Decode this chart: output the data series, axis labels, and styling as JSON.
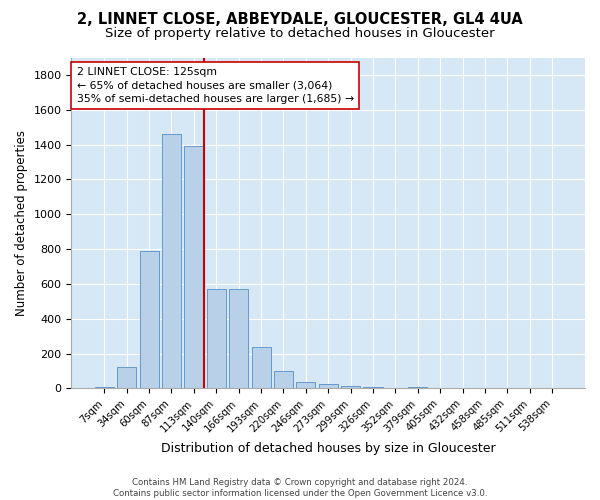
{
  "title1": "2, LINNET CLOSE, ABBEYDALE, GLOUCESTER, GL4 4UA",
  "title2": "Size of property relative to detached houses in Gloucester",
  "xlabel": "Distribution of detached houses by size in Gloucester",
  "ylabel": "Number of detached properties",
  "footer1": "Contains HM Land Registry data © Crown copyright and database right 2024.",
  "footer2": "Contains public sector information licensed under the Open Government Licence v3.0.",
  "categories": [
    "7sqm",
    "34sqm",
    "60sqm",
    "87sqm",
    "113sqm",
    "140sqm",
    "166sqm",
    "193sqm",
    "220sqm",
    "246sqm",
    "273sqm",
    "299sqm",
    "326sqm",
    "352sqm",
    "379sqm",
    "405sqm",
    "432sqm",
    "458sqm",
    "485sqm",
    "511sqm",
    "538sqm"
  ],
  "values": [
    5,
    120,
    790,
    1460,
    1390,
    570,
    570,
    240,
    100,
    35,
    25,
    15,
    10,
    0,
    10,
    0,
    0,
    0,
    0,
    0,
    0
  ],
  "bar_color": "#b8d0e8",
  "bar_edge_color": "#6699cc",
  "highlight_color": "#cc0000",
  "annotation_line1": "2 LINNET CLOSE: 125sqm",
  "annotation_line2": "← 65% of detached houses are smaller (3,064)",
  "annotation_line3": "35% of semi-detached houses are larger (1,685) →",
  "annotation_box_color": "#ffffff",
  "annotation_box_edge_color": "#cc0000",
  "ylim": [
    0,
    1900
  ],
  "yticks": [
    0,
    200,
    400,
    600,
    800,
    1000,
    1200,
    1400,
    1600,
    1800
  ],
  "plot_bg_color": "#d6e8f5",
  "title_fontsize": 10.5,
  "subtitle_fontsize": 9.5,
  "figwidth": 6.0,
  "figheight": 5.0,
  "dpi": 100
}
